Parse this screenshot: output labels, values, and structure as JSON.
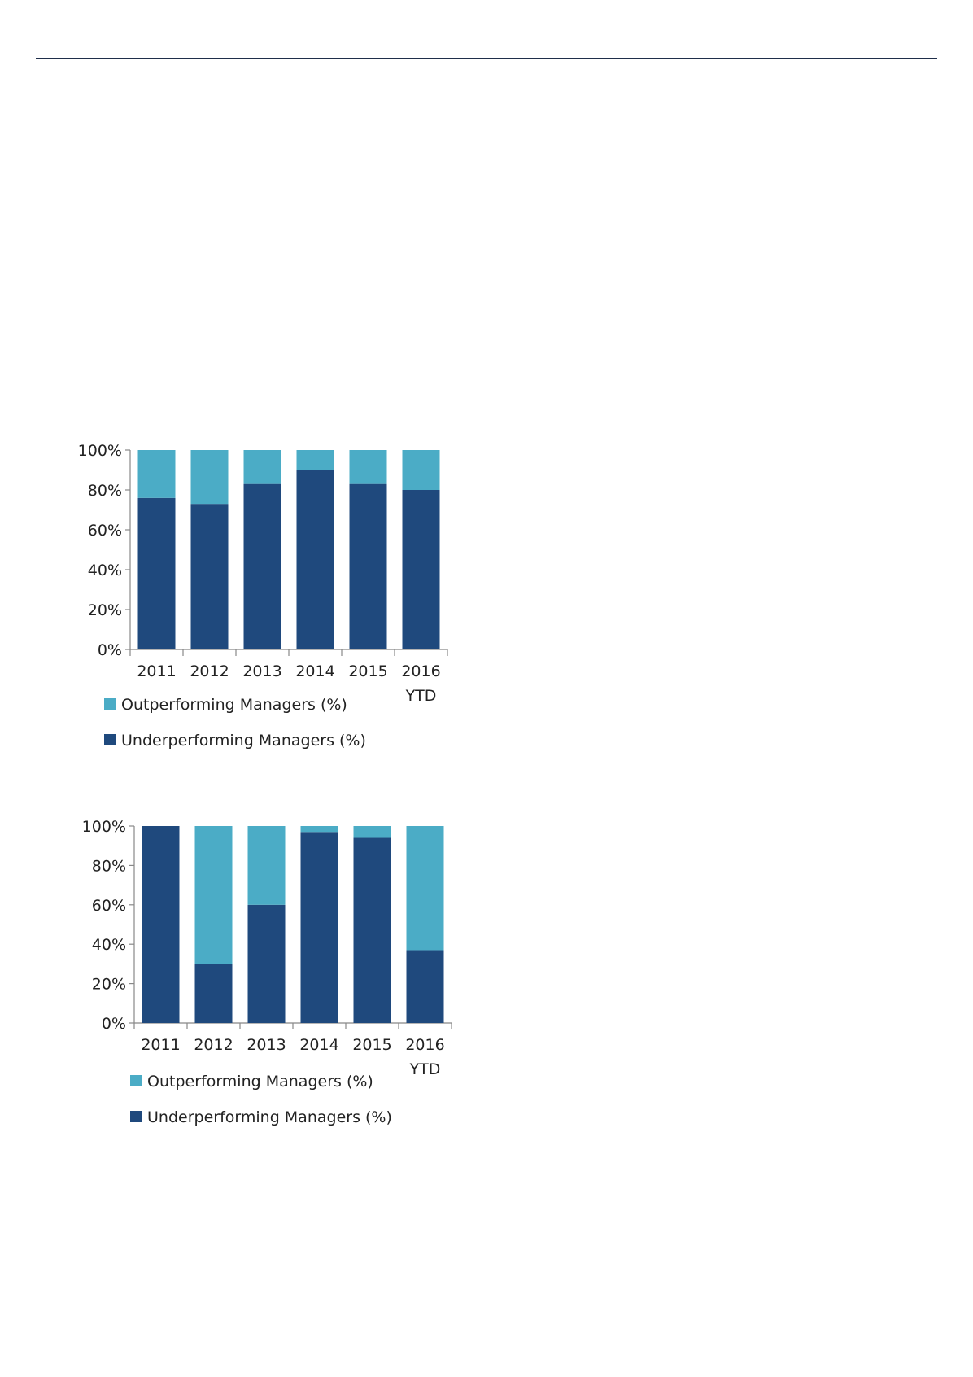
{
  "chart_data": [
    {
      "type": "bar",
      "stacked": true,
      "categories": [
        "2011",
        "2012",
        "2013",
        "2014",
        "2015",
        "2016 YTD"
      ],
      "series": [
        {
          "name": "Underperforming Managers (%)",
          "color": "#1f497d",
          "values": [
            76,
            73,
            83,
            90,
            83,
            80
          ]
        },
        {
          "name": "Outperforming Managers (%)",
          "color": "#4bacc6",
          "values": [
            24,
            27,
            17,
            10,
            17,
            20
          ]
        }
      ],
      "yticks": [
        "0%",
        "20%",
        "40%",
        "60%",
        "80%",
        "100%"
      ],
      "ylim": [
        0,
        100
      ],
      "legend_position": "bottom",
      "grid": false
    },
    {
      "type": "bar",
      "stacked": true,
      "categories": [
        "2011",
        "2012",
        "2013",
        "2014",
        "2015",
        "2016 YTD"
      ],
      "series": [
        {
          "name": "Underperforming Managers (%)",
          "color": "#1f497d",
          "values": [
            100,
            30,
            60,
            97,
            94,
            37
          ]
        },
        {
          "name": "Outperforming Managers (%)",
          "color": "#4bacc6",
          "values": [
            0,
            70,
            40,
            3,
            6,
            63
          ]
        }
      ],
      "yticks": [
        "0%",
        "20%",
        "40%",
        "60%",
        "80%",
        "100%"
      ],
      "ylim": [
        0,
        100
      ],
      "legend_position": "bottom",
      "grid": false
    }
  ]
}
